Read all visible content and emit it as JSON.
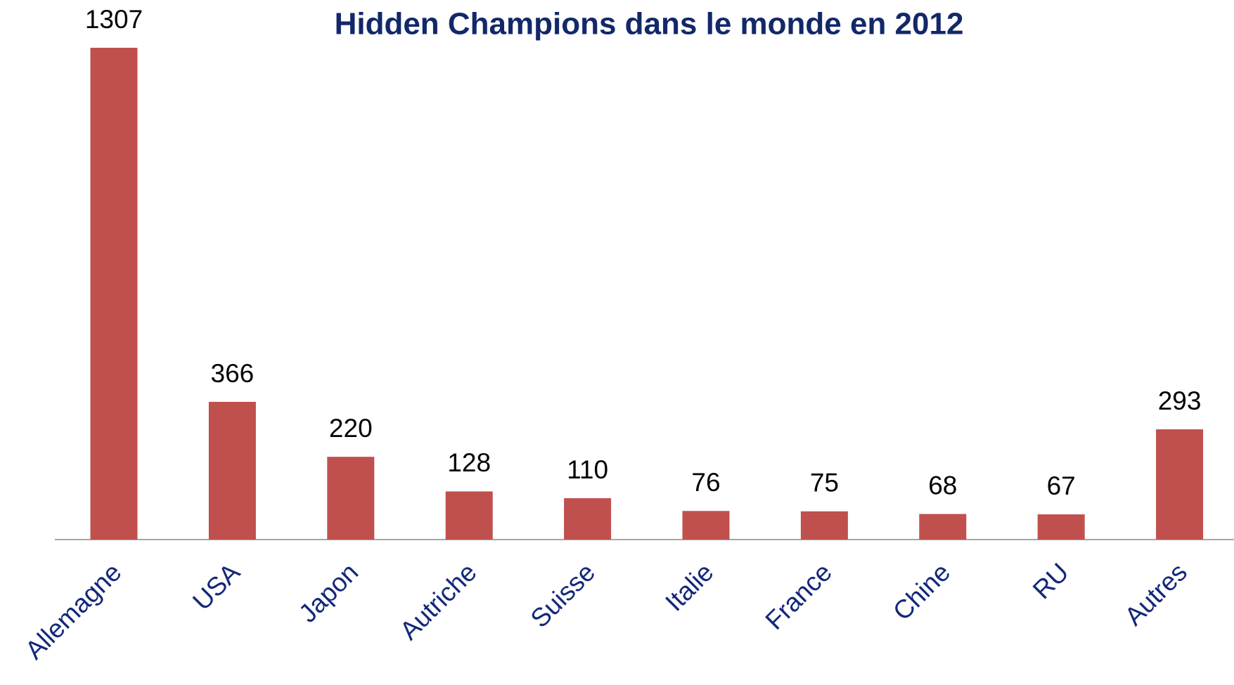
{
  "chart_data": {
    "type": "bar",
    "title": "Hidden Champions dans le monde en 2012",
    "categories": [
      "Allemagne",
      "USA",
      "Japon",
      "Autriche",
      "Suisse",
      "Italie",
      "France",
      "Chine",
      "RU",
      "Autres"
    ],
    "values": [
      1307,
      366,
      220,
      128,
      110,
      76,
      75,
      68,
      67,
      293
    ],
    "color": "#c0504d"
  }
}
